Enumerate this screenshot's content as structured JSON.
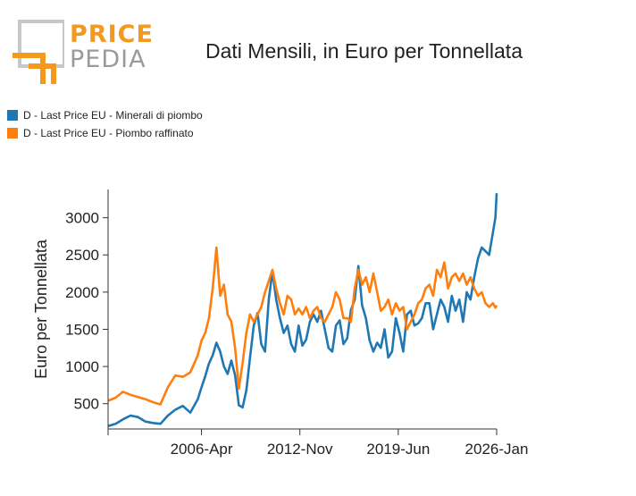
{
  "logo": {
    "word1": "PRICE",
    "word2": "PEDIA",
    "accent_color": "#f39a1e",
    "gray_color": "#9a9a9a"
  },
  "chart_data": {
    "type": "line",
    "title": "Dati Mensili, in Euro per Tonnellata",
    "ylabel": "Euro per Tonnellata",
    "xlabel": "",
    "x_start": "2000-01",
    "x_end": "2026-01",
    "x_ticks": [
      "2006-Apr",
      "2012-Nov",
      "2019-Jun",
      "2026-Jan"
    ],
    "y_ticks": [
      500,
      1000,
      1500,
      2000,
      2500,
      3000
    ],
    "ylim": [
      160,
      3380
    ],
    "grid": false,
    "legend_position": "top-left",
    "series": [
      {
        "name": "D - Last Price EU - Minerali di piombo",
        "color": "#1f77b4",
        "x": [
          "2000-01",
          "2000-07",
          "2001-01",
          "2001-07",
          "2002-01",
          "2002-07",
          "2003-01",
          "2003-07",
          "2004-01",
          "2004-07",
          "2005-01",
          "2005-07",
          "2006-01",
          "2006-04",
          "2006-07",
          "2006-10",
          "2007-01",
          "2007-04",
          "2007-07",
          "2007-10",
          "2008-01",
          "2008-04",
          "2008-07",
          "2008-10",
          "2009-01",
          "2009-04",
          "2009-07",
          "2009-10",
          "2010-01",
          "2010-04",
          "2010-07",
          "2010-10",
          "2011-01",
          "2011-04",
          "2011-07",
          "2011-10",
          "2012-01",
          "2012-04",
          "2012-07",
          "2012-10",
          "2013-01",
          "2013-04",
          "2013-07",
          "2013-10",
          "2014-01",
          "2014-04",
          "2014-07",
          "2014-10",
          "2015-01",
          "2015-04",
          "2015-07",
          "2015-10",
          "2016-01",
          "2016-04",
          "2016-07",
          "2016-10",
          "2017-01",
          "2017-04",
          "2017-07",
          "2017-10",
          "2018-01",
          "2018-04",
          "2018-07",
          "2018-10",
          "2019-01",
          "2019-04",
          "2019-07",
          "2019-10",
          "2020-01",
          "2020-04",
          "2020-07",
          "2020-10",
          "2021-01",
          "2021-04",
          "2021-07",
          "2021-10",
          "2022-01",
          "2022-04",
          "2022-07",
          "2022-10",
          "2023-01",
          "2023-04",
          "2023-07",
          "2023-10",
          "2024-01",
          "2024-04",
          "2024-07",
          "2024-10",
          "2025-01",
          "2025-04",
          "2025-07",
          "2025-10",
          "2025-12",
          "2026-01"
        ],
        "values": [
          200,
          230,
          290,
          340,
          320,
          260,
          240,
          230,
          340,
          420,
          470,
          380,
          560,
          720,
          870,
          1040,
          1150,
          1320,
          1200,
          1000,
          900,
          1080,
          880,
          480,
          450,
          680,
          1120,
          1550,
          1720,
          1300,
          1200,
          1900,
          2280,
          1900,
          1650,
          1450,
          1550,
          1300,
          1200,
          1550,
          1280,
          1360,
          1600,
          1700,
          1600,
          1750,
          1500,
          1250,
          1200,
          1550,
          1620,
          1300,
          1380,
          1760,
          1900,
          2350,
          1820,
          1650,
          1350,
          1200,
          1320,
          1250,
          1500,
          1120,
          1200,
          1650,
          1450,
          1200,
          1700,
          1750,
          1550,
          1580,
          1650,
          1850,
          1850,
          1500,
          1700,
          1900,
          1800,
          1600,
          1950,
          1750,
          1900,
          1600,
          2000,
          1900,
          2200,
          2450,
          2600,
          2550,
          2500,
          2800,
          3000,
          3330
        ]
      },
      {
        "name": "D - Last Price EU - Piombo raffinato",
        "color": "#ff7f0e",
        "x": [
          "2000-01",
          "2000-07",
          "2001-01",
          "2001-07",
          "2002-01",
          "2002-07",
          "2003-01",
          "2003-07",
          "2004-01",
          "2004-07",
          "2005-01",
          "2005-07",
          "2006-01",
          "2006-04",
          "2006-07",
          "2006-10",
          "2007-01",
          "2007-04",
          "2007-07",
          "2007-10",
          "2008-01",
          "2008-04",
          "2008-07",
          "2008-10",
          "2009-01",
          "2009-04",
          "2009-07",
          "2009-10",
          "2010-01",
          "2010-04",
          "2010-07",
          "2010-10",
          "2011-01",
          "2011-04",
          "2011-07",
          "2011-10",
          "2012-01",
          "2012-04",
          "2012-07",
          "2012-10",
          "2013-01",
          "2013-04",
          "2013-07",
          "2013-10",
          "2014-01",
          "2014-04",
          "2014-07",
          "2014-10",
          "2015-01",
          "2015-04",
          "2015-07",
          "2015-10",
          "2016-01",
          "2016-04",
          "2016-07",
          "2016-10",
          "2017-01",
          "2017-04",
          "2017-07",
          "2017-10",
          "2018-01",
          "2018-04",
          "2018-07",
          "2018-10",
          "2019-01",
          "2019-04",
          "2019-07",
          "2019-10",
          "2020-01",
          "2020-04",
          "2020-07",
          "2020-10",
          "2021-01",
          "2021-04",
          "2021-07",
          "2021-10",
          "2022-01",
          "2022-04",
          "2022-07",
          "2022-10",
          "2023-01",
          "2023-04",
          "2023-07",
          "2023-10",
          "2024-01",
          "2024-04",
          "2024-07",
          "2024-10",
          "2025-01",
          "2025-04",
          "2025-07",
          "2025-10",
          "2025-12",
          "2026-01"
        ],
        "values": [
          540,
          580,
          660,
          620,
          590,
          560,
          520,
          490,
          720,
          880,
          860,
          920,
          1150,
          1350,
          1450,
          1650,
          2050,
          2600,
          1950,
          2100,
          1700,
          1600,
          1250,
          700,
          1050,
          1450,
          1700,
          1600,
          1700,
          1800,
          2000,
          2150,
          2300,
          2050,
          1850,
          1700,
          1950,
          1900,
          1700,
          1780,
          1700,
          1800,
          1650,
          1750,
          1800,
          1650,
          1600,
          1700,
          1800,
          2000,
          1900,
          1650,
          1650,
          1600,
          2050,
          2300,
          2100,
          2200,
          2000,
          2250,
          2000,
          1750,
          1800,
          1900,
          1700,
          1850,
          1750,
          1800,
          1500,
          1600,
          1700,
          1850,
          1900,
          2050,
          2100,
          1950,
          2300,
          2200,
          2400,
          2050,
          2200,
          2250,
          2150,
          2250,
          2100,
          2200,
          2050,
          1950,
          2000,
          1850,
          1800,
          1850,
          1790,
          1820
        ]
      }
    ]
  }
}
